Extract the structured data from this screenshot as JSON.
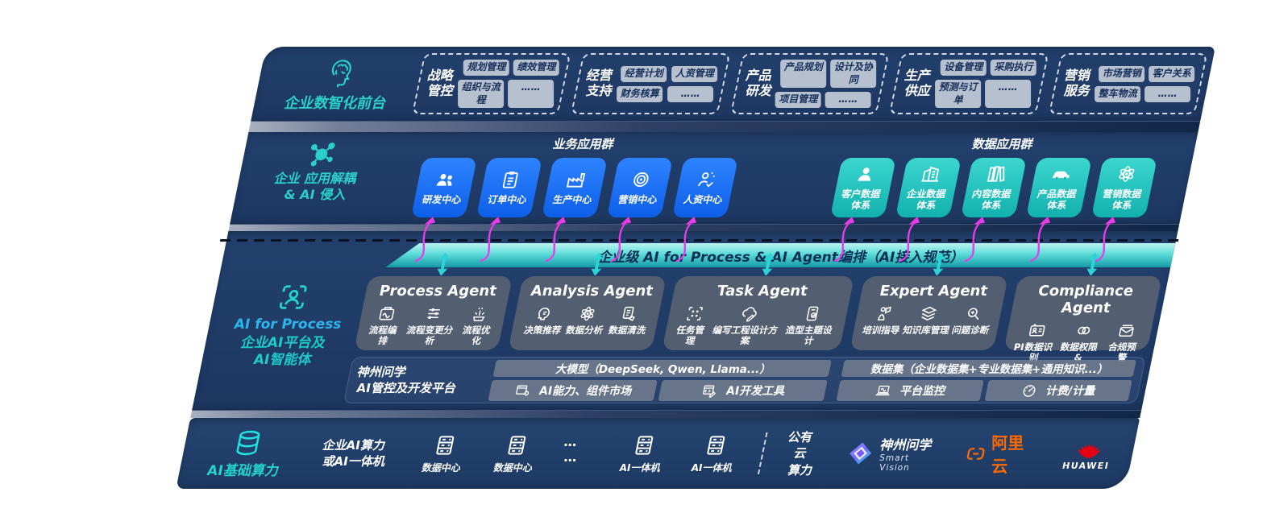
{
  "layers": {
    "front": {
      "label": "企业数智化前台",
      "icon": "brain-icon",
      "groups": [
        {
          "title": "战略\n管控",
          "pills": [
            "规划管理",
            "绩效管理",
            "组织与流程",
            "……"
          ]
        },
        {
          "title": "经营\n支持",
          "pills": [
            "经营计划",
            "人资管理",
            "财务核算",
            "……"
          ]
        },
        {
          "title": "产品\n研发",
          "pills": [
            "产品规划",
            "设计及协同",
            "项目管理",
            "……"
          ]
        },
        {
          "title": "生产\n供应",
          "pills": [
            "设备管理",
            "采购执行",
            "预测与订单",
            "……"
          ]
        },
        {
          "title": "营销\n服务",
          "pills": [
            "市场营销",
            "客户关系",
            "整车物流",
            "……"
          ]
        }
      ]
    },
    "apps": {
      "label": "企业 应用解耦\n& AI 侵入",
      "icon": "molecule-icon",
      "business": {
        "header": "业务应用群",
        "boxes": [
          {
            "label": "研发中心",
            "icon": "team-icon"
          },
          {
            "label": "订单中心",
            "icon": "clipboard-icon"
          },
          {
            "label": "生产中心",
            "icon": "factory-icon"
          },
          {
            "label": "营销中心",
            "icon": "target-icon"
          },
          {
            "label": "人资中心",
            "icon": "people-star-icon"
          }
        ]
      },
      "data": {
        "header": "数据应用群",
        "boxes": [
          {
            "label": "客户数据\n体系",
            "icon": "user-icon"
          },
          {
            "label": "企业数据\n体系",
            "icon": "building-icon"
          },
          {
            "label": "内容数据\n体系",
            "icon": "books-icon"
          },
          {
            "label": "产品数据\n体系",
            "icon": "car-icon"
          },
          {
            "label": "营销数据\n体系",
            "icon": "atom-icon"
          }
        ]
      }
    },
    "ai": {
      "icon": "person-scan-icon",
      "label_en": "AI for Process",
      "label_cn": "企业AI平台及\nAI智能体",
      "banner": "企业级 AI for Process & AI Agent编排（AI接入规范）",
      "agents": [
        {
          "title": "Process Agent",
          "items": [
            {
              "label": "流程编排",
              "icon": "flow-icon"
            },
            {
              "label": "流程变更分析",
              "icon": "sliders-icon"
            },
            {
              "label": "流程优化",
              "icon": "optimize-icon"
            }
          ]
        },
        {
          "title": "Analysis Agent",
          "items": [
            {
              "label": "决策推荐",
              "icon": "insight-icon"
            },
            {
              "label": "数据分析",
              "icon": "atom-icon"
            },
            {
              "label": "数据清洗",
              "icon": "clean-icon"
            }
          ]
        },
        {
          "title": "Task Agent",
          "items": [
            {
              "label": "任务管理",
              "icon": "task-grid-icon"
            },
            {
              "label": "编写工程设计方案",
              "icon": "cloud-pen-icon"
            },
            {
              "label": "造型主题设计",
              "icon": "theme-icon"
            }
          ]
        },
        {
          "title": "Expert Agent",
          "items": [
            {
              "label": "培训指导",
              "icon": "training-icon"
            },
            {
              "label": "知识库管理",
              "icon": "layers-icon"
            },
            {
              "label": "问题诊断",
              "icon": "diagnose-icon"
            }
          ]
        },
        {
          "title": "Compliance Agent",
          "items": [
            {
              "label": "PI数据识别",
              "icon": "id-card-icon"
            },
            {
              "label": "数据权限 &\n安全",
              "icon": "link-lock-icon"
            },
            {
              "label": "合规预警",
              "icon": "mail-alert-icon"
            }
          ]
        }
      ],
      "platform": {
        "label": "神州问学\nAI管控及开发平台",
        "model_bar": "大模型（DeepSeek, Qwen, Llama...）",
        "left_bars": [
          {
            "label": "AI能力、组件市场",
            "icon": "components-icon"
          },
          {
            "label": "AI开发工具",
            "icon": "devtools-icon"
          }
        ],
        "dataset_bar": "数据集（企业数据集+专业数据集+通用知识...）",
        "right_bars": [
          {
            "label": "平台监控",
            "icon": "monitor-icon"
          },
          {
            "label": "计费/计量",
            "icon": "gauge-icon"
          }
        ]
      }
    },
    "infra": {
      "label": "AI基础算力",
      "icon": "database-icon",
      "compute_label": "企业AI算力\n或AI一体机",
      "nodes": [
        {
          "label": "数据中心",
          "icon": "server-icon"
        },
        {
          "label": "数据中心",
          "icon": "server-icon"
        },
        {
          "type": "dots",
          "label": "… …"
        },
        {
          "label": "AI一体机",
          "icon": "server-icon"
        },
        {
          "label": "AI一体机",
          "icon": "server-icon"
        }
      ],
      "public_cloud": "公有云\n算力",
      "vendors": {
        "smartvision": {
          "name": "神州问学",
          "sub": "Smart Vision",
          "icon": "smartvision-diamond-icon"
        },
        "aliyun": {
          "name": "阿里云",
          "icon": "aliyun-bracket-icon"
        },
        "huawei": {
          "name": "HUAWEI",
          "icon": "huawei-flower-icon"
        }
      }
    }
  },
  "colors": {
    "teal_accent": "#2ad0c9",
    "blue_box": "#1470f4",
    "teal_box": "#2bc9c5",
    "magenta_arrow": "#ea3bea",
    "banner_top": "#bdf5f1",
    "banner_bottom": "#149aa7",
    "navy_band": "#203c68",
    "aliyun_orange": "#ff6a00",
    "huawei_red": "#e60012"
  }
}
